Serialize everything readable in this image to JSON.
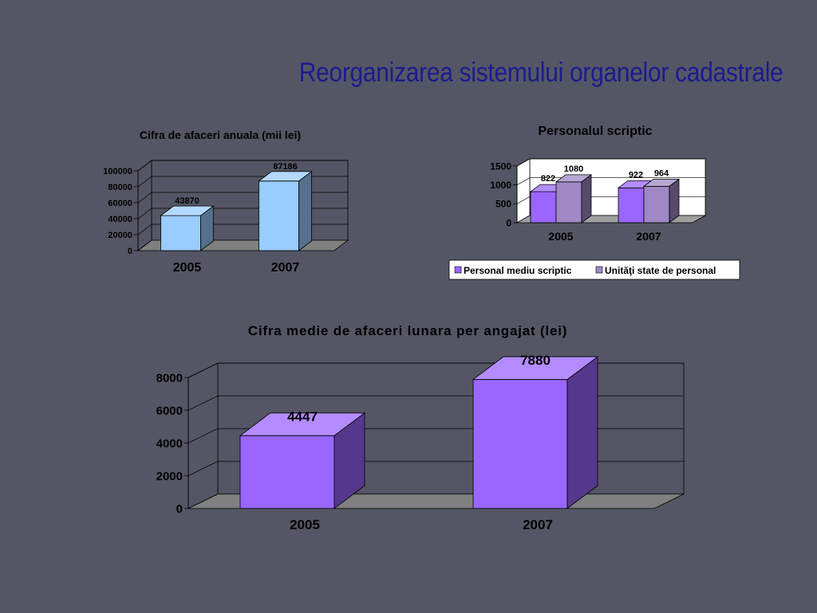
{
  "slide": {
    "title": "Reorganizarea sistemului organelor cadastrale",
    "colors": {
      "background": "#545665",
      "title": "#1c1b8e"
    }
  },
  "chart_data": [
    {
      "type": "bar",
      "title": "Cifra de afaceri anuala (mii lei)",
      "categories": [
        "2005",
        "2007"
      ],
      "series": [
        {
          "values": [
            43870,
            87186
          ]
        }
      ],
      "data_labels": [
        "43870",
        "87186"
      ],
      "yticks": [
        "0",
        "20000",
        "40000",
        "60000",
        "80000",
        "100000"
      ],
      "ylim": [
        0,
        100000
      ],
      "grid": true,
      "colors": {
        "bar": "#99ccff",
        "plot_background": "#545665",
        "floor": "#808080",
        "text": "#000000"
      }
    },
    {
      "type": "bar",
      "title": "Personalul scriptic",
      "categories": [
        "2005",
        "2007"
      ],
      "series": [
        {
          "name": "Personal mediu scriptic",
          "values": [
            822,
            922
          ],
          "color": "#9966ff"
        },
        {
          "name": "Unităţi state de personal",
          "values": [
            1080,
            964
          ],
          "color": "#9f88c4"
        }
      ],
      "data_labels": [
        [
          "822",
          "922"
        ],
        [
          "1080",
          "964"
        ]
      ],
      "yticks": [
        "0",
        "500",
        "1000",
        "1500"
      ],
      "ylim": [
        0,
        1500
      ],
      "grid": true,
      "legend": "bottom",
      "colors": {
        "plot_background": "#ffffff",
        "floor": "#a0a0a0",
        "text": "#000000"
      }
    },
    {
      "type": "bar",
      "title": "Cifra medie de afaceri lunara per angajat (lei)",
      "categories": [
        "2005",
        "2007"
      ],
      "series": [
        {
          "values": [
            4447,
            7880
          ]
        }
      ],
      "data_labels": [
        "4447",
        "7880"
      ],
      "yticks": [
        "0",
        "2000",
        "4000",
        "6000",
        "8000"
      ],
      "ylim": [
        0,
        8000
      ],
      "grid": true,
      "colors": {
        "bar": "#9966ff",
        "plot_background": "#545665",
        "floor": "#808080",
        "text": "#000000"
      }
    }
  ]
}
